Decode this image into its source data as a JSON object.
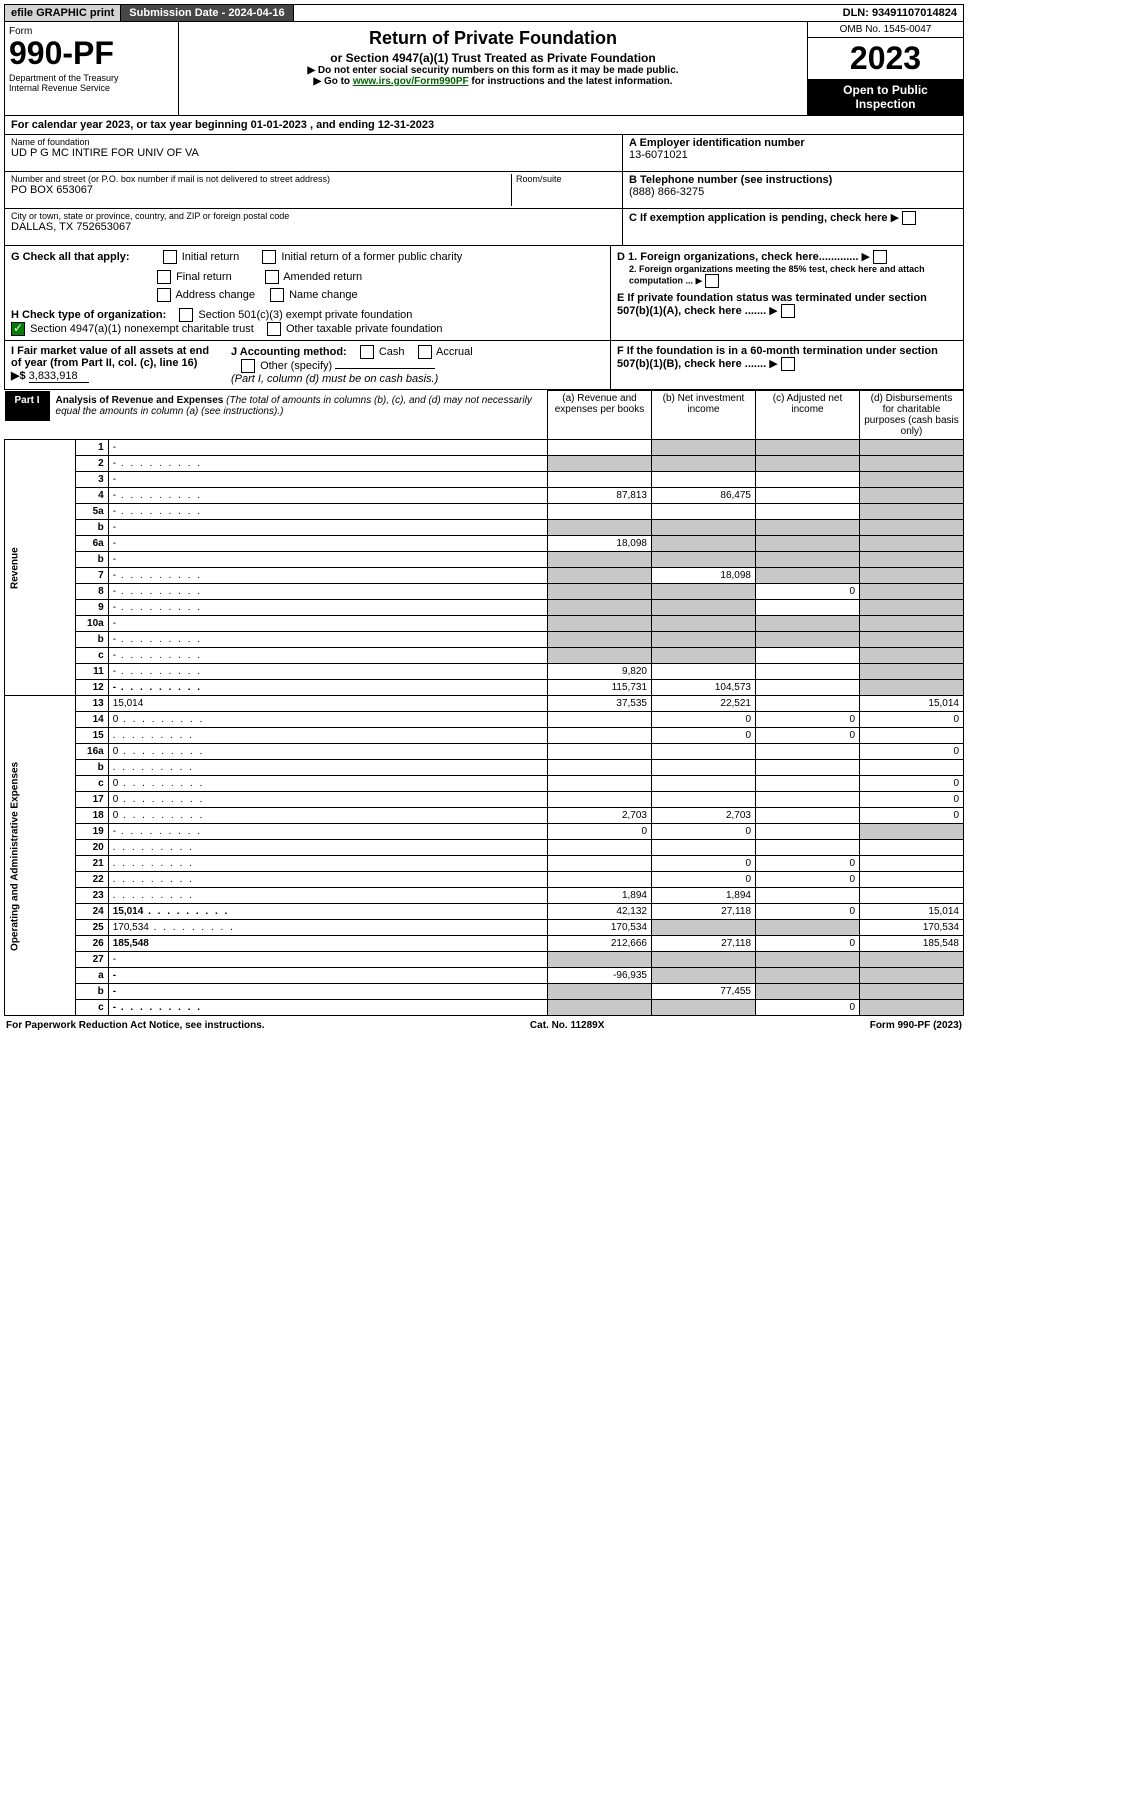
{
  "top": {
    "efile": "efile GRAPHIC print",
    "submission": "Submission Date - 2024-04-16",
    "dln": "DLN: 93491107014824"
  },
  "header": {
    "form": "Form",
    "num": "990-PF",
    "dept": "Department of the Treasury\nInternal Revenue Service",
    "title": "Return of Private Foundation",
    "subtitle": "or Section 4947(a)(1) Trust Treated as Private Foundation",
    "note1": "▶ Do not enter social security numbers on this form as it may be made public.",
    "note2": "▶ Go to www.irs.gov/Form990PF for instructions and the latest information.",
    "omb": "OMB No. 1545-0047",
    "year": "2023",
    "open": "Open to Public Inspection"
  },
  "cal": "For calendar year 2023, or tax year beginning 01-01-2023                             , and ending 12-31-2023",
  "org": {
    "name_label": "Name of foundation",
    "name": "UD P G MC INTIRE FOR UNIV OF VA",
    "addr_label": "Number and street (or P.O. box number if mail is not delivered to street address)",
    "addr": "PO BOX 653067",
    "room_label": "Room/suite",
    "city_label": "City or town, state or province, country, and ZIP or foreign postal code",
    "city": "DALLAS, TX  752653067",
    "ein_label": "A Employer identification number",
    "ein": "13-6071021",
    "tel_label": "B Telephone number (see instructions)",
    "tel": "(888) 866-3275",
    "c": "C If exemption application is pending, check here",
    "d1": "D 1. Foreign organizations, check here.............",
    "d2": "2. Foreign organizations meeting the 85% test, check here and attach computation ...",
    "e": "E If private foundation status was terminated under section 507(b)(1)(A), check here .......",
    "f": "F If the foundation is in a 60-month termination under section 507(b)(1)(B), check here .......",
    "g": "G Check all that apply:",
    "g_opts": [
      "Initial return",
      "Initial return of a former public charity",
      "Final return",
      "Amended return",
      "Address change",
      "Name change"
    ],
    "h": "H Check type of organization:",
    "h1": "Section 501(c)(3) exempt private foundation",
    "h2": "Section 4947(a)(1) nonexempt charitable trust",
    "h3": "Other taxable private foundation",
    "i": "I Fair market value of all assets at end of year (from Part II, col. (c), line 16) ▶$",
    "i_val": "3,833,918",
    "j": "J Accounting method:",
    "j_opts": [
      "Cash",
      "Accrual"
    ],
    "j_other": "Other (specify)",
    "j_note": "(Part I, column (d) must be on cash basis.)"
  },
  "part1": {
    "label": "Part I",
    "title": "Analysis of Revenue and Expenses",
    "note": "(The total of amounts in columns (b), (c), and (d) may not necessarily equal the amounts in column (a) (see instructions).)",
    "cols": {
      "a": "(a) Revenue and expenses per books",
      "b": "(b) Net investment income",
      "c": "(c) Adjusted net income",
      "d": "(d) Disbursements for charitable purposes (cash basis only)"
    }
  },
  "sections": {
    "rev": "Revenue",
    "exp": "Operating and Administrative Expenses"
  },
  "rows": [
    {
      "n": "1",
      "d": "-",
      "a": "",
      "b": "-",
      "c": "-"
    },
    {
      "n": "2",
      "d": "-",
      "dots": true,
      "a": "-",
      "b": "-",
      "c": "-"
    },
    {
      "n": "3",
      "d": "-",
      "a": "",
      "b": "",
      "c": ""
    },
    {
      "n": "4",
      "d": "-",
      "dots": true,
      "a": "87,813",
      "b": "86,475",
      "c": ""
    },
    {
      "n": "5a",
      "d": "-",
      "dots": true,
      "a": "",
      "b": "",
      "c": ""
    },
    {
      "n": "b",
      "d": "-",
      "a": "-",
      "b": "-",
      "c": "-"
    },
    {
      "n": "6a",
      "d": "-",
      "a": "18,098",
      "b": "-",
      "c": "-"
    },
    {
      "n": "b",
      "d": "-",
      "a": "-",
      "b": "-",
      "c": "-"
    },
    {
      "n": "7",
      "d": "-",
      "dots": true,
      "a": "-",
      "b": "18,098",
      "c": "-"
    },
    {
      "n": "8",
      "d": "-",
      "dots": true,
      "a": "-",
      "b": "-",
      "c": "0"
    },
    {
      "n": "9",
      "d": "-",
      "dots": true,
      "a": "-",
      "b": "-",
      "c": ""
    },
    {
      "n": "10a",
      "d": "-",
      "a": "-",
      "b": "-",
      "c": "-"
    },
    {
      "n": "b",
      "d": "-",
      "dots": true,
      "a": "-",
      "b": "-",
      "c": "-"
    },
    {
      "n": "c",
      "d": "-",
      "dots": true,
      "a": "-",
      "b": "-",
      "c": ""
    },
    {
      "n": "11",
      "d": "-",
      "dots": true,
      "a": "9,820",
      "b": "",
      "c": ""
    },
    {
      "n": "12",
      "d": "-",
      "dots": true,
      "bold": true,
      "a": "115,731",
      "b": "104,573",
      "c": ""
    },
    {
      "n": "13",
      "d": "15,014",
      "a": "37,535",
      "b": "22,521",
      "c": ""
    },
    {
      "n": "14",
      "d": "0",
      "dots": true,
      "a": "",
      "b": "0",
      "c": "0"
    },
    {
      "n": "15",
      "d": "",
      "dots": true,
      "a": "",
      "b": "0",
      "c": "0"
    },
    {
      "n": "16a",
      "d": "0",
      "dots": true,
      "a": "",
      "b": "",
      "c": ""
    },
    {
      "n": "b",
      "d": "",
      "dots": true,
      "a": "",
      "b": "",
      "c": ""
    },
    {
      "n": "c",
      "d": "0",
      "dots": true,
      "a": "",
      "b": "",
      "c": ""
    },
    {
      "n": "17",
      "d": "0",
      "dots": true,
      "a": "",
      "b": "",
      "c": ""
    },
    {
      "n": "18",
      "d": "0",
      "dots": true,
      "a": "2,703",
      "b": "2,703",
      "c": ""
    },
    {
      "n": "19",
      "d": "-",
      "dots": true,
      "a": "0",
      "b": "0",
      "c": ""
    },
    {
      "n": "20",
      "d": "",
      "dots": true,
      "a": "",
      "b": "",
      "c": ""
    },
    {
      "n": "21",
      "d": "",
      "dots": true,
      "a": "",
      "b": "0",
      "c": "0"
    },
    {
      "n": "22",
      "d": "",
      "dots": true,
      "a": "",
      "b": "0",
      "c": "0"
    },
    {
      "n": "23",
      "d": "",
      "dots": true,
      "a": "1,894",
      "b": "1,894",
      "c": ""
    },
    {
      "n": "24",
      "d": "15,014",
      "dots": true,
      "bold": true,
      "a": "42,132",
      "b": "27,118",
      "c": "0"
    },
    {
      "n": "25",
      "d": "170,534",
      "dots": true,
      "a": "170,534",
      "b": "-",
      "c": "-"
    },
    {
      "n": "26",
      "d": "185,548",
      "bold": true,
      "a": "212,666",
      "b": "27,118",
      "c": "0"
    },
    {
      "n": "27",
      "d": "-",
      "a": "-",
      "b": "-",
      "c": "-"
    },
    {
      "n": "a",
      "d": "-",
      "bold": true,
      "a": "-96,935",
      "b": "-",
      "c": "-"
    },
    {
      "n": "b",
      "d": "-",
      "bold": true,
      "a": "-",
      "b": "77,455",
      "c": "-"
    },
    {
      "n": "c",
      "d": "-",
      "dots": true,
      "bold": true,
      "a": "-",
      "b": "-",
      "c": "0"
    }
  ],
  "footer": {
    "left": "For Paperwork Reduction Act Notice, see instructions.",
    "mid": "Cat. No. 11289X",
    "right": "Form 990-PF (2023)"
  }
}
